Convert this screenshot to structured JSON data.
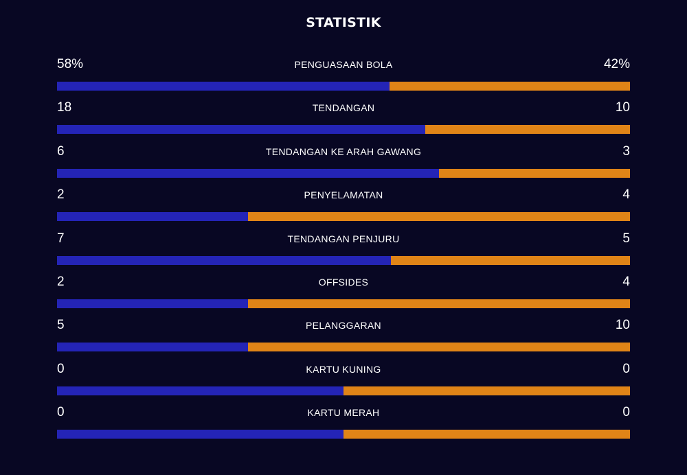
{
  "title": "STATISTIK",
  "colors": {
    "background": "#080723",
    "home": "#2424b6",
    "away": "#e08417",
    "text": "#ffffff"
  },
  "stats": [
    {
      "label": "PENGUASAAN BOLA",
      "home": "58%",
      "away": "42%",
      "home_share": 0.58
    },
    {
      "label": "TENDANGAN",
      "home": "18",
      "away": "10",
      "home_share": 0.643
    },
    {
      "label": "TENDANGAN KE ARAH GAWANG",
      "home": "6",
      "away": "3",
      "home_share": 0.667
    },
    {
      "label": "PENYELAMATAN",
      "home": "2",
      "away": "4",
      "home_share": 0.333
    },
    {
      "label": "TENDANGAN PENJURU",
      "home": "7",
      "away": "5",
      "home_share": 0.583
    },
    {
      "label": "OFFSIDES",
      "home": "2",
      "away": "4",
      "home_share": 0.333
    },
    {
      "label": "PELANGGARAN",
      "home": "5",
      "away": "10",
      "home_share": 0.333
    },
    {
      "label": "KARTU KUNING",
      "home": "0",
      "away": "0",
      "home_share": 0.5
    },
    {
      "label": "KARTU MERAH",
      "home": "0",
      "away": "0",
      "home_share": 0.5
    }
  ]
}
